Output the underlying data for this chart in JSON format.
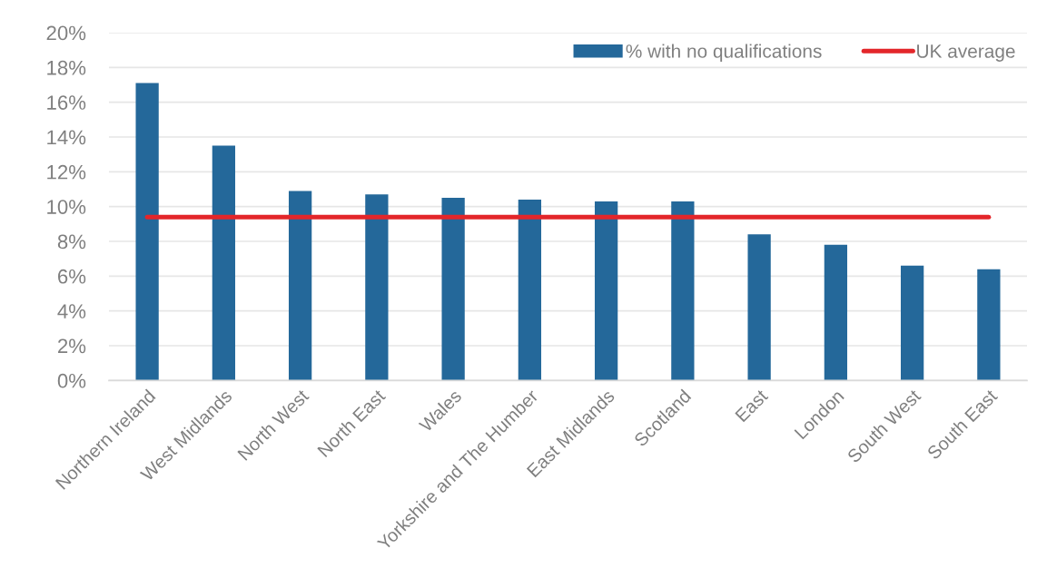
{
  "chart_data": {
    "type": "bar",
    "categories": [
      "Northern Ireland",
      "West Midlands",
      "North West",
      "North East",
      "Wales",
      "Yorkshire and The Humber",
      "East Midlands",
      "Scotland",
      "East",
      "London",
      "South West",
      "South East"
    ],
    "series": [
      {
        "name": "% with no qualifications",
        "color": "#24689a",
        "values": [
          17.1,
          13.5,
          10.9,
          10.7,
          10.5,
          10.4,
          10.3,
          10.3,
          8.4,
          7.8,
          6.6,
          6.4
        ]
      }
    ],
    "ylim": [
      0,
      20
    ],
    "yticks": [
      {
        "value": 0,
        "label": "0%"
      },
      {
        "value": 2,
        "label": "2%"
      },
      {
        "value": 4,
        "label": "4%"
      },
      {
        "value": 6,
        "label": "6%"
      },
      {
        "value": 8,
        "label": "8%"
      },
      {
        "value": 10,
        "label": "10%"
      },
      {
        "value": 12,
        "label": "12%"
      },
      {
        "value": 14,
        "label": "14%"
      },
      {
        "value": 16,
        "label": "16%"
      },
      {
        "value": 18,
        "label": "18%"
      },
      {
        "value": 20,
        "label": "20%"
      }
    ],
    "grid": "y",
    "legend": "top right",
    "ref_lines": [
      {
        "axis": "y",
        "value": 9.4,
        "label": "UK average",
        "color": "#e3262a"
      }
    ]
  }
}
